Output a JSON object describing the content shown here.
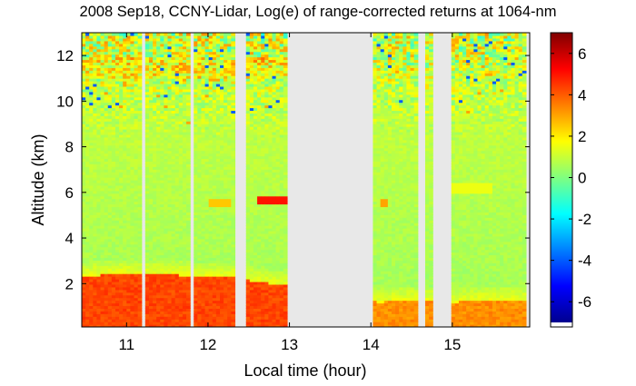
{
  "chart_data": {
    "type": "heatmap",
    "title": "2008 Sep18, CCNY-Lidar, Log(e) of range-corrected returns at 1064-nm",
    "xlabel": "Local time (hour)",
    "ylabel": "Altitude (km)",
    "xlim": [
      10.45,
      15.95
    ],
    "ylim": [
      0.1,
      13
    ],
    "xticks": [
      11,
      12,
      13,
      14,
      15
    ],
    "yticks": [
      2,
      4,
      6,
      8,
      10,
      12
    ],
    "colorbar": {
      "min": -7,
      "max": 7,
      "ticks": [
        -6,
        -4,
        -2,
        0,
        2,
        4,
        6
      ],
      "colormap": "jet"
    },
    "no_data_color": "#e8e8e8",
    "data_gaps_hours": [
      [
        11.18,
        11.23
      ],
      [
        11.78,
        11.81
      ],
      [
        12.32,
        12.45
      ],
      [
        12.98,
        14.02
      ],
      [
        14.58,
        14.68
      ],
      [
        14.78,
        14.98
      ]
    ],
    "layers": {
      "boundary_layer_top_km": [
        {
          "x": 10.5,
          "y": 2.35
        },
        {
          "x": 11.0,
          "y": 2.45
        },
        {
          "x": 11.5,
          "y": 2.4
        },
        {
          "x": 12.0,
          "y": 2.35
        },
        {
          "x": 12.3,
          "y": 2.3
        },
        {
          "x": 12.6,
          "y": 2.1
        },
        {
          "x": 13.0,
          "y": 1.9
        },
        {
          "x": 14.1,
          "y": 1.2
        },
        {
          "x": 14.5,
          "y": 1.3
        },
        {
          "x": 15.0,
          "y": 1.2
        },
        {
          "x": 15.5,
          "y": 1.3
        },
        {
          "x": 15.9,
          "y": 1.25
        }
      ],
      "cloud_layers": [
        {
          "x_start": 12.6,
          "x_end": 12.95,
          "altitude_km": 5.65,
          "value": 5
        },
        {
          "x_start": 12.0,
          "x_end": 12.3,
          "altitude_km": 5.6,
          "value": 2.5
        },
        {
          "x_start": 14.1,
          "x_end": 14.2,
          "altitude_km": 5.6,
          "value": 3
        },
        {
          "x_start": 15.0,
          "x_end": 15.5,
          "altitude_km": 6.2,
          "value": 1.5
        }
      ],
      "boundary_layer_value": 4.3,
      "free_troposphere_value": 0.6
    }
  }
}
